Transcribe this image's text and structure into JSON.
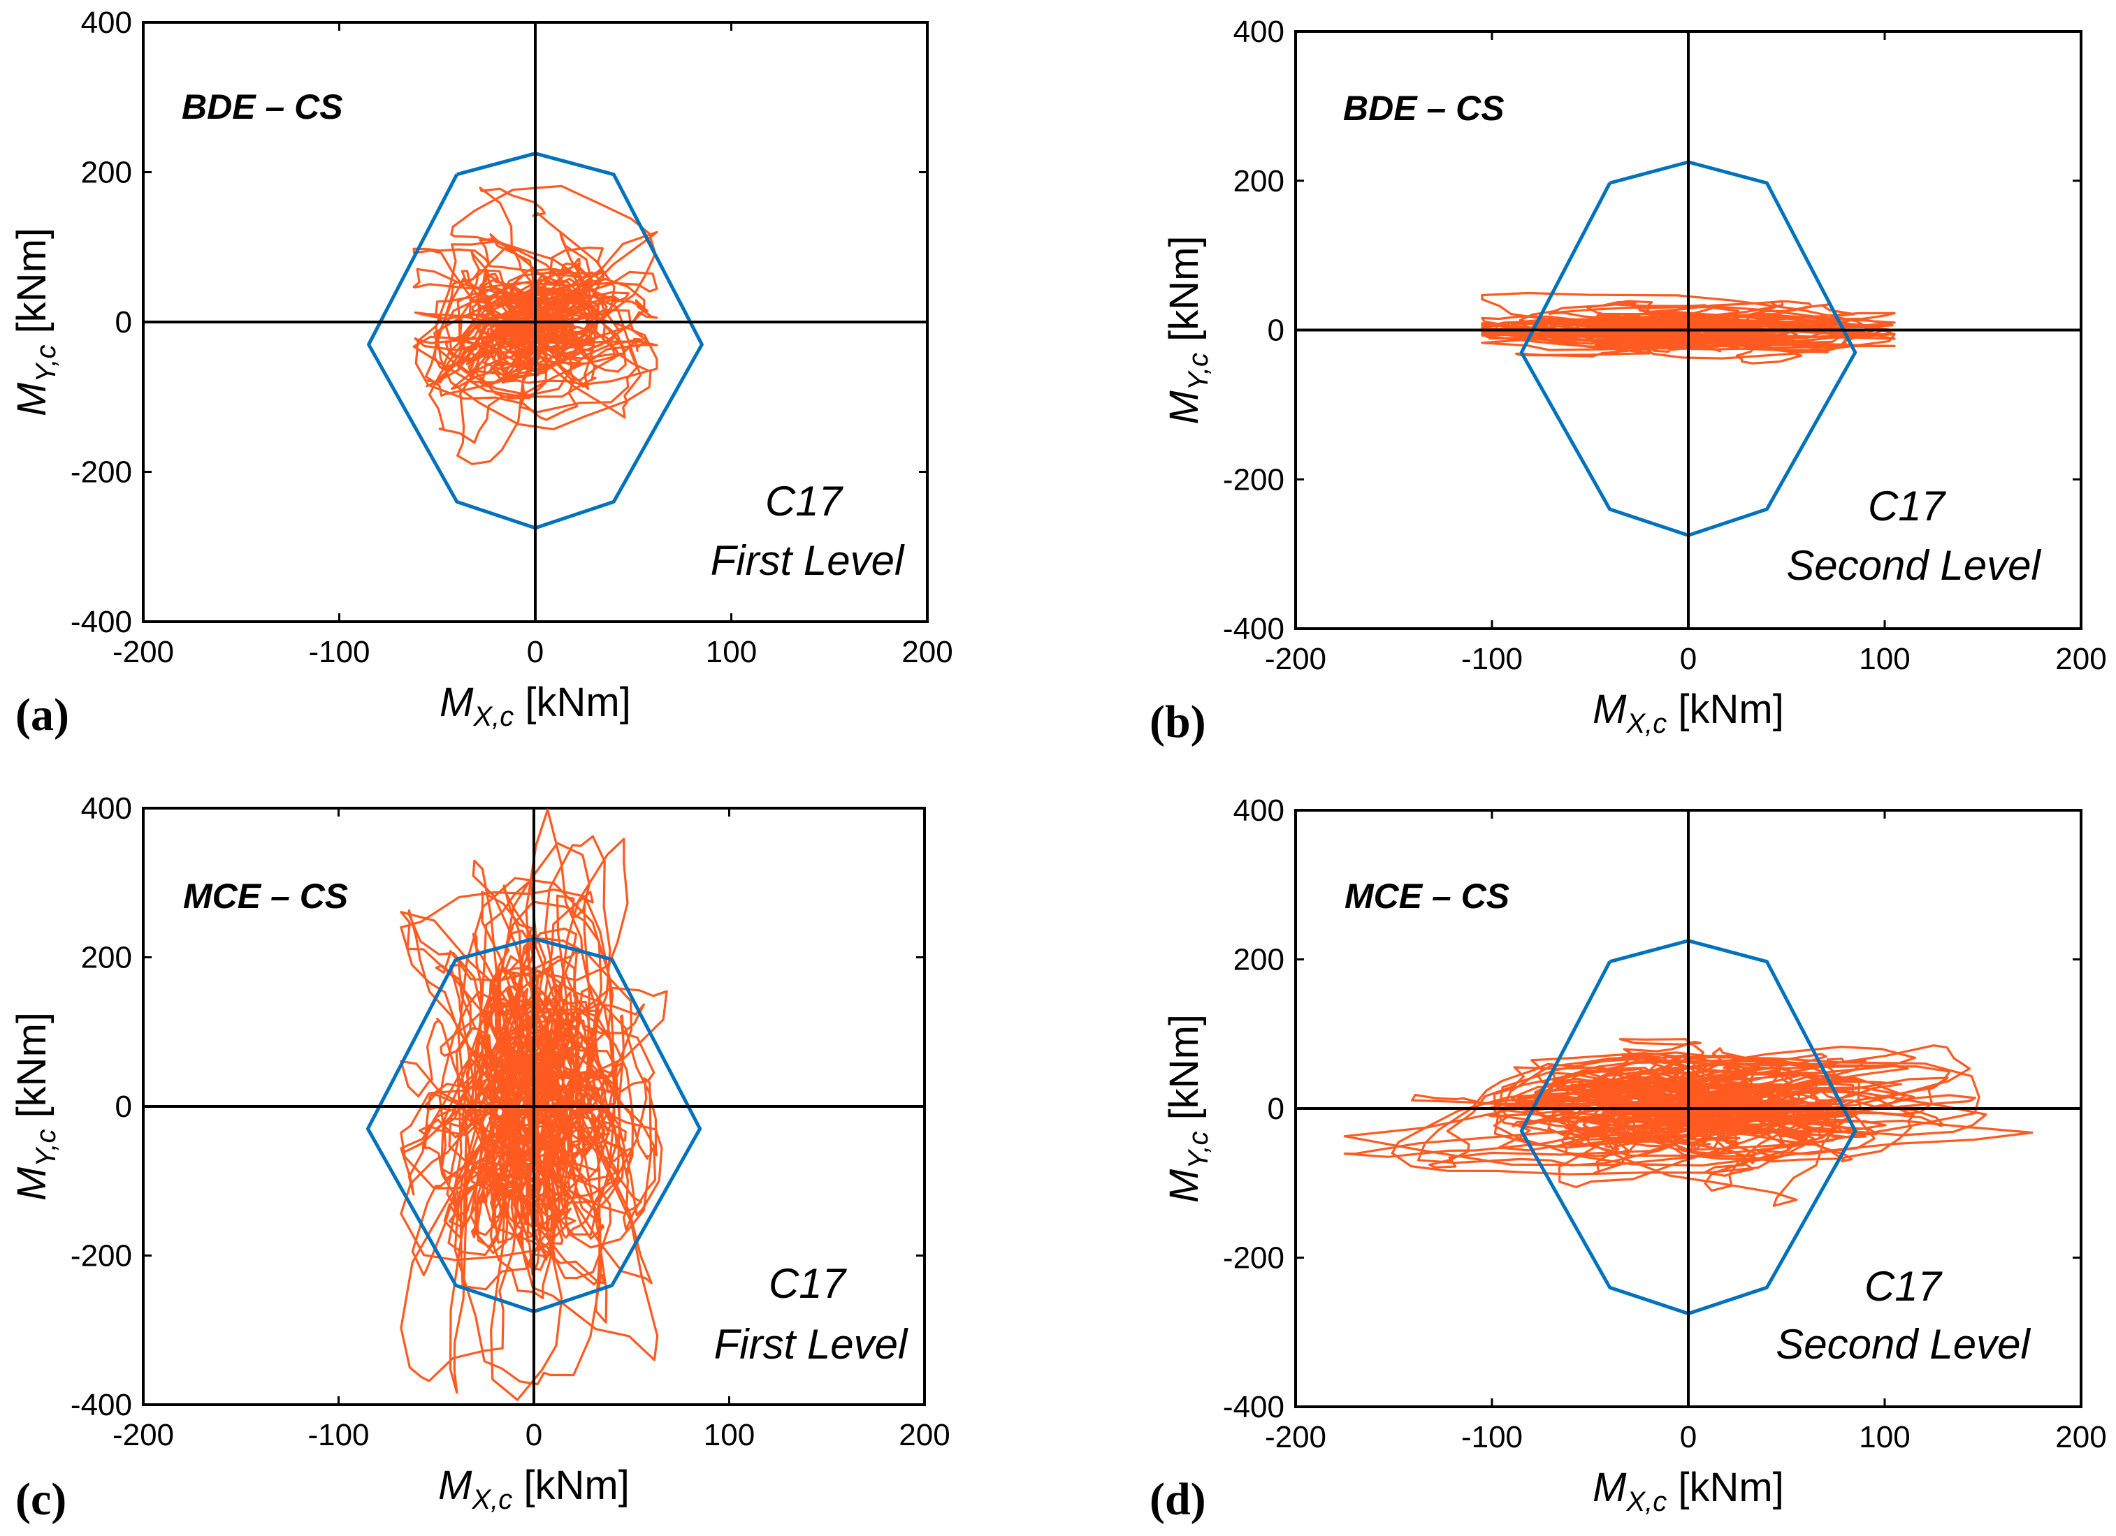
{
  "figure": {
    "capacity_color": "#0072BD",
    "response_color": "#FF5A1F",
    "axis_color": "#000000"
  },
  "chart_data": [
    {
      "id": "a",
      "type": "line",
      "panel_label": "(a)",
      "load_case": "BDE – CS",
      "column": "C17",
      "level": "First Level",
      "xlabel": {
        "main": "M",
        "sub": "X,c",
        "unit": " [kNm]"
      },
      "ylabel": {
        "main": "M",
        "sub": "Y,c",
        "unit": " [kNm]"
      },
      "xlim": [
        -200,
        200
      ],
      "ylim": [
        -400,
        400
      ],
      "xticks": [
        -200,
        -100,
        0,
        100,
        200
      ],
      "yticks": [
        -400,
        -200,
        0,
        200,
        400
      ],
      "series": [
        {
          "name": "Interaction domain",
          "x": [
            -40,
            0,
            40,
            85,
            40,
            0,
            -40,
            -85,
            -40
          ],
          "y": [
            197,
            225,
            197,
            -30,
            -240,
            -275,
            -240,
            -30,
            197
          ]
        },
        {
          "name": "Biaxial moment response",
          "generator": {
            "seed": 11,
            "n": 1500,
            "ax": 30,
            "ay": 58,
            "bx": 62,
            "by": 232
          }
        }
      ]
    },
    {
      "id": "b",
      "type": "line",
      "panel_label": "(b)",
      "load_case": "BDE – CS",
      "column": "C17",
      "level": "Second Level",
      "xlabel": {
        "main": "M",
        "sub": "X,c",
        "unit": " [kNm]"
      },
      "ylabel": {
        "main": "M",
        "sub": "Y,c",
        "unit": " [kNm]"
      },
      "xlim": [
        -200,
        200
      ],
      "ylim": [
        -400,
        400
      ],
      "xticks": [
        -200,
        -100,
        0,
        100,
        200
      ],
      "yticks": [
        -400,
        -200,
        0,
        200,
        400
      ],
      "series": [
        {
          "name": "Interaction domain",
          "x": [
            -40,
            0,
            40,
            85,
            40,
            0,
            -40,
            -85,
            -40
          ],
          "y": [
            197,
            225,
            197,
            -30,
            -240,
            -275,
            -240,
            -30,
            197
          ]
        },
        {
          "name": "Biaxial moment response",
          "generator": {
            "seed": 23,
            "n": 1300,
            "ax": 55,
            "ay": 16,
            "bx": 105,
            "by": 62
          }
        }
      ]
    },
    {
      "id": "c",
      "type": "line",
      "panel_label": "(c)",
      "load_case": "MCE – CS",
      "column": "C17",
      "level": "First Level",
      "xlabel": {
        "main": "M",
        "sub": "X,c",
        "unit": " [kNm]"
      },
      "ylabel": {
        "main": "M",
        "sub": "Y,c",
        "unit": " [kNm]"
      },
      "xlim": [
        -200,
        200
      ],
      "ylim": [
        -400,
        400
      ],
      "xticks": [
        -200,
        -100,
        0,
        100,
        200
      ],
      "yticks": [
        -400,
        -200,
        0,
        200,
        400
      ],
      "series": [
        {
          "name": "Interaction domain",
          "x": [
            -40,
            0,
            40,
            85,
            40,
            0,
            -40,
            -85,
            -40
          ],
          "y": [
            197,
            225,
            197,
            -30,
            -240,
            -275,
            -240,
            -30,
            197
          ]
        },
        {
          "name": "Biaxial moment response",
          "generator": {
            "seed": 37,
            "n": 2200,
            "ax": 28,
            "ay": 135,
            "bx": 68,
            "by": 398
          }
        }
      ]
    },
    {
      "id": "d",
      "type": "line",
      "panel_label": "(d)",
      "load_case": "MCE – CS",
      "column": "C17",
      "level": "Second Level",
      "xlabel": {
        "main": "M",
        "sub": "X,c",
        "unit": " [kNm]"
      },
      "ylabel": {
        "main": "M",
        "sub": "Y,c",
        "unit": " [kNm]"
      },
      "xlim": [
        -200,
        200
      ],
      "ylim": [
        -400,
        400
      ],
      "xticks": [
        -200,
        -100,
        0,
        100,
        200
      ],
      "yticks": [
        -400,
        -200,
        0,
        200,
        400
      ],
      "series": [
        {
          "name": "Interaction domain",
          "x": [
            -40,
            0,
            40,
            85,
            40,
            0,
            -40,
            -85,
            -40
          ],
          "y": [
            197,
            225,
            197,
            -30,
            -240,
            -275,
            -240,
            -30,
            197
          ]
        },
        {
          "name": "Biaxial moment response",
          "generator": {
            "seed": 53,
            "n": 1800,
            "ax": 62,
            "ay": 38,
            "bx": 175,
            "by": 145
          }
        }
      ]
    }
  ]
}
